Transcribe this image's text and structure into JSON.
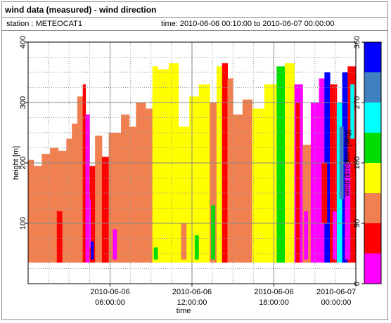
{
  "header": {
    "title": "wind data (measured) - wind direction",
    "station": "station : METEOCAT1",
    "time_range": "time: 2010-06-06 00:10:00 to 2010-06-07 00:00:00"
  },
  "chart_data": {
    "type": "heatmap",
    "xlabel": "time",
    "ylabel": "height [m]",
    "x_unit": "hours since 2010-06-06 00:00",
    "xlim": [
      0,
      24
    ],
    "ylim": [
      0,
      400
    ],
    "x_ticks": [
      {
        "value": 6,
        "line1": "2010-06-06",
        "line2": "06:00:00"
      },
      {
        "value": 12,
        "line1": "2010-06-06",
        "line2": "12:00:00"
      },
      {
        "value": 18,
        "line1": "2010-06-06",
        "line2": "18:00:00"
      },
      {
        "value": 24,
        "line1": "2010-06-07",
        "line2": "00:00:00"
      }
    ],
    "y_ticks": [
      100,
      200,
      300,
      400
    ],
    "grid": true,
    "height_bottom": 35,
    "colorbar": {
      "label": "wind direction [deg]",
      "ticks": [
        0,
        90,
        180,
        270,
        360
      ],
      "bins": [
        {
          "from": 0,
          "to": 45,
          "color": "#ff00ff"
        },
        {
          "from": 45,
          "to": 90,
          "color": "#ff0000"
        },
        {
          "from": 90,
          "to": 135,
          "color": "#f08050"
        },
        {
          "from": 135,
          "to": 180,
          "color": "#ffff00"
        },
        {
          "from": 180,
          "to": 225,
          "color": "#00dd00"
        },
        {
          "from": 225,
          "to": 270,
          "color": "#00ffff"
        },
        {
          "from": 270,
          "to": 315,
          "color": "#4080c0"
        },
        {
          "from": 315,
          "to": 360,
          "color": "#0000ff"
        }
      ]
    },
    "blocks": [
      {
        "t0": 0.0,
        "t1": 0.4,
        "top": 205,
        "color": "#f08050"
      },
      {
        "t0": 0.4,
        "t1": 1.0,
        "top": 195,
        "color": "#f08050"
      },
      {
        "t0": 1.0,
        "t1": 1.6,
        "top": 215,
        "color": "#f08050"
      },
      {
        "t0": 1.6,
        "t1": 2.2,
        "top": 225,
        "color": "#f08050"
      },
      {
        "t0": 2.2,
        "t1": 2.8,
        "top": 220,
        "color": "#f08050"
      },
      {
        "t0": 2.8,
        "t1": 3.2,
        "top": 240,
        "color": "#f08050"
      },
      {
        "t0": 3.2,
        "t1": 3.6,
        "top": 265,
        "color": "#f08050"
      },
      {
        "t0": 3.6,
        "t1": 4.0,
        "top": 310,
        "color": "#f08050"
      },
      {
        "t0": 4.0,
        "t1": 4.2,
        "top": 330,
        "color": "#ff0000"
      },
      {
        "t0": 4.2,
        "t1": 4.5,
        "top": 280,
        "color": "#ff00ff"
      },
      {
        "t0": 4.5,
        "t1": 4.9,
        "top": 195,
        "color": "#ff0000"
      },
      {
        "t0": 4.9,
        "t1": 5.4,
        "top": 245,
        "color": "#f08050"
      },
      {
        "t0": 5.4,
        "t1": 5.9,
        "top": 210,
        "color": "#ff0000"
      },
      {
        "t0": 5.9,
        "t1": 6.8,
        "top": 250,
        "color": "#f08050"
      },
      {
        "t0": 6.8,
        "t1": 7.4,
        "top": 280,
        "color": "#f08050"
      },
      {
        "t0": 7.4,
        "t1": 7.9,
        "top": 260,
        "color": "#f08050"
      },
      {
        "t0": 7.9,
        "t1": 8.6,
        "top": 300,
        "color": "#f08050"
      },
      {
        "t0": 8.6,
        "t1": 9.1,
        "top": 290,
        "color": "#f08050"
      },
      {
        "t0": 9.1,
        "t1": 9.5,
        "top": 360,
        "color": "#ffff00"
      },
      {
        "t0": 9.5,
        "t1": 10.3,
        "top": 355,
        "color": "#ffff00"
      },
      {
        "t0": 10.3,
        "t1": 11.0,
        "top": 365,
        "color": "#ffff00"
      },
      {
        "t0": 11.0,
        "t1": 11.8,
        "top": 260,
        "color": "#ffff00"
      },
      {
        "t0": 11.8,
        "t1": 12.5,
        "top": 310,
        "color": "#ffff00"
      },
      {
        "t0": 12.5,
        "t1": 13.3,
        "top": 330,
        "color": "#ffff00"
      },
      {
        "t0": 13.3,
        "t1": 13.8,
        "top": 300,
        "color": "#f08050"
      },
      {
        "t0": 13.8,
        "t1": 14.2,
        "top": 360,
        "color": "#ffff00"
      },
      {
        "t0": 14.2,
        "t1": 14.6,
        "top": 365,
        "color": "#ff0000"
      },
      {
        "t0": 14.6,
        "t1": 15.0,
        "top": 340,
        "color": "#f08050"
      },
      {
        "t0": 15.0,
        "t1": 15.7,
        "top": 280,
        "color": "#f08050"
      },
      {
        "t0": 15.7,
        "t1": 16.4,
        "top": 305,
        "color": "#f08050"
      },
      {
        "t0": 16.4,
        "t1": 17.3,
        "top": 290,
        "color": "#ffff00"
      },
      {
        "t0": 17.3,
        "t1": 18.2,
        "top": 330,
        "color": "#ffff00"
      },
      {
        "t0": 18.2,
        "t1": 18.8,
        "top": 360,
        "color": "#00dd00"
      },
      {
        "t0": 18.8,
        "t1": 19.5,
        "top": 365,
        "color": "#ffff00"
      },
      {
        "t0": 19.5,
        "t1": 20.1,
        "top": 330,
        "color": "#ff00ff"
      },
      {
        "t0": 20.1,
        "t1": 20.7,
        "top": 230,
        "color": "#f08050"
      },
      {
        "t0": 20.7,
        "t1": 21.3,
        "top": 300,
        "color": "#ff00ff"
      },
      {
        "t0": 21.3,
        "t1": 21.7,
        "top": 340,
        "color": "#ff00ff"
      },
      {
        "t0": 21.7,
        "t1": 22.1,
        "top": 350,
        "color": "#0000ff"
      },
      {
        "t0": 22.1,
        "t1": 22.6,
        "top": 330,
        "color": "#ff0000"
      },
      {
        "t0": 22.6,
        "t1": 23.0,
        "top": 300,
        "color": "#00ffff"
      },
      {
        "t0": 23.0,
        "t1": 23.4,
        "top": 350,
        "color": "#0000ff"
      },
      {
        "t0": 23.4,
        "t1": 24.0,
        "top": 360,
        "color": "#ff0000"
      }
    ],
    "patches": [
      {
        "t0": 2.1,
        "t1": 2.5,
        "h0": 35,
        "h1": 120,
        "color": "#ff0000"
      },
      {
        "t0": 4.3,
        "t1": 4.6,
        "h0": 60,
        "h1": 140,
        "color": "#ff00ff"
      },
      {
        "t0": 4.6,
        "t1": 4.8,
        "h0": 40,
        "h1": 70,
        "color": "#0000ff"
      },
      {
        "t0": 5.5,
        "t1": 5.8,
        "h0": 35,
        "h1": 200,
        "color": "#ff0000"
      },
      {
        "t0": 6.2,
        "t1": 6.5,
        "h0": 40,
        "h1": 90,
        "color": "#ff00ff"
      },
      {
        "t0": 9.2,
        "t1": 9.5,
        "h0": 40,
        "h1": 60,
        "color": "#00dd00"
      },
      {
        "t0": 11.2,
        "t1": 11.6,
        "h0": 40,
        "h1": 100,
        "color": "#f08050"
      },
      {
        "t0": 12.2,
        "t1": 12.5,
        "h0": 40,
        "h1": 80,
        "color": "#00dd00"
      },
      {
        "t0": 13.4,
        "t1": 13.7,
        "h0": 40,
        "h1": 130,
        "color": "#00dd00"
      },
      {
        "t0": 14.3,
        "t1": 14.5,
        "h0": 35,
        "h1": 300,
        "color": "#ff0000"
      },
      {
        "t0": 18.3,
        "t1": 18.6,
        "h0": 35,
        "h1": 330,
        "color": "#00dd00"
      },
      {
        "t0": 19.6,
        "t1": 19.9,
        "h0": 35,
        "h1": 300,
        "color": "#ff0000"
      },
      {
        "t0": 20.2,
        "t1": 20.5,
        "h0": 40,
        "h1": 120,
        "color": "#ff00ff"
      },
      {
        "t0": 21.5,
        "t1": 21.9,
        "h0": 100,
        "h1": 200,
        "color": "#ff0000"
      },
      {
        "t0": 21.8,
        "t1": 22.0,
        "h0": 200,
        "h1": 320,
        "color": "#0000ff"
      },
      {
        "t0": 22.3,
        "t1": 22.6,
        "h0": 40,
        "h1": 120,
        "color": "#ff00ff"
      },
      {
        "t0": 22.8,
        "t1": 23.1,
        "h0": 140,
        "h1": 260,
        "color": "#4080c0"
      },
      {
        "t0": 23.2,
        "t1": 23.6,
        "h0": 40,
        "h1": 200,
        "color": "#ff00ff"
      },
      {
        "t0": 23.6,
        "t1": 23.9,
        "h0": 240,
        "h1": 330,
        "color": "#00ffff"
      }
    ]
  }
}
